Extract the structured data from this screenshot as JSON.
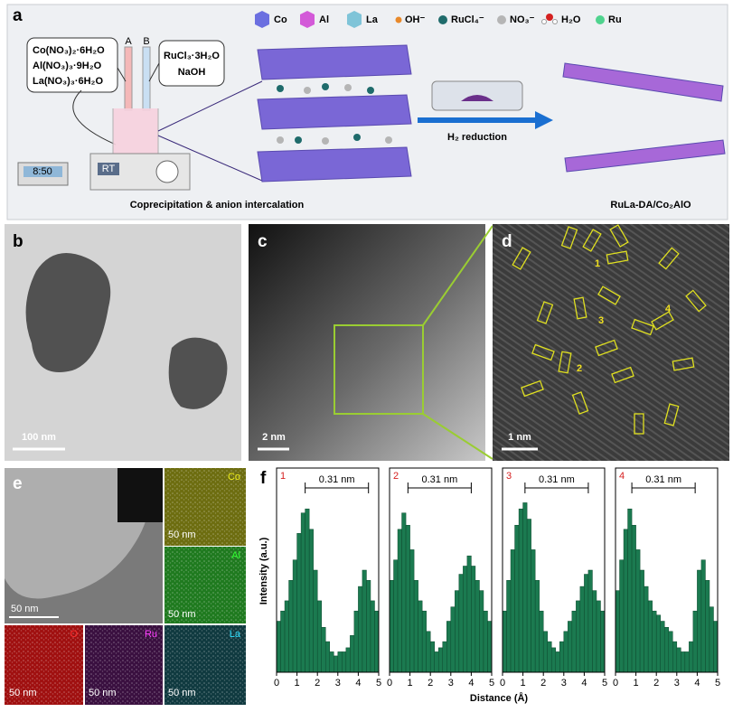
{
  "panel_a": {
    "label": "a",
    "legend": [
      "Co",
      "Al",
      "La",
      "OH⁻",
      "RuCl₄⁻",
      "NO₃⁻",
      "H₂O",
      "Ru"
    ],
    "precursors_left": [
      "Co(NO₃)₂·6H₂O",
      "Al(NO₃)₃·9H₂O",
      "La(NO₃)₃·6H₂O"
    ],
    "precursors_right": [
      "RuCl₃·3H₂O",
      "NaOH"
    ],
    "syringes": [
      "A",
      "B"
    ],
    "display": "8:50",
    "stirrer": "RT",
    "reduction": "H₂ reduction",
    "step_left": "Coprecipitation & anion intercalation",
    "step_right": "RuLa-DA/Co₂AlO"
  },
  "panel_b": {
    "label": "b",
    "scale": "100 nm"
  },
  "panel_c": {
    "label": "c",
    "scale": "2 nm"
  },
  "panel_d": {
    "label": "d",
    "scale": "1 nm",
    "markers": [
      "1",
      "2",
      "3",
      "4"
    ]
  },
  "panel_e": {
    "label": "e",
    "scale": "50 nm",
    "maps": [
      {
        "element": "Co",
        "scale": "50 nm"
      },
      {
        "element": "Al",
        "scale": "50 nm"
      },
      {
        "element": "O",
        "scale": "50 nm"
      },
      {
        "element": "Ru",
        "scale": "50 nm"
      },
      {
        "element": "La",
        "scale": "50 nm"
      }
    ]
  },
  "panel_f": {
    "label": "f",
    "ylabel": "Intensity (a.u.)",
    "xlabel": "Distance (Å)"
  },
  "chart_data": [
    {
      "type": "histogram",
      "title": "1",
      "color": "#1b7a50",
      "bins": [
        0,
        0.2,
        0.4,
        0.6,
        0.8,
        1,
        1.2,
        1.4,
        1.6,
        1.8,
        2,
        2.2,
        2.4,
        2.6,
        2.8,
        3,
        3.2,
        3.4,
        3.6,
        3.8,
        4,
        4.2,
        4.4,
        4.6,
        4.8,
        5
      ],
      "values": [
        0.25,
        0.3,
        0.35,
        0.45,
        0.55,
        0.68,
        0.78,
        0.8,
        0.7,
        0.5,
        0.35,
        0.22,
        0.15,
        0.1,
        0.08,
        0.1,
        0.1,
        0.12,
        0.18,
        0.3,
        0.42,
        0.5,
        0.45,
        0.35,
        0.3
      ],
      "xlim": [
        0,
        5
      ],
      "xticks": [
        0,
        1,
        2,
        3,
        4,
        5
      ],
      "ylim": [
        0,
        1
      ],
      "annotation": {
        "text": "0.31 nm",
        "x": [
          1.4,
          4.5
        ]
      }
    },
    {
      "type": "histogram",
      "title": "2",
      "color": "#1b7a50",
      "bins": [
        0,
        0.2,
        0.4,
        0.6,
        0.8,
        1,
        1.2,
        1.4,
        1.6,
        1.8,
        2,
        2.2,
        2.4,
        2.6,
        2.8,
        3,
        3.2,
        3.4,
        3.6,
        3.8,
        4,
        4.2,
        4.4,
        4.6,
        4.8,
        5
      ],
      "values": [
        0.45,
        0.55,
        0.7,
        0.78,
        0.72,
        0.6,
        0.45,
        0.35,
        0.3,
        0.2,
        0.15,
        0.1,
        0.12,
        0.15,
        0.25,
        0.32,
        0.4,
        0.48,
        0.52,
        0.57,
        0.52,
        0.45,
        0.4,
        0.3,
        0.25
      ],
      "xlim": [
        0,
        5
      ],
      "xticks": [
        0,
        1,
        2,
        3,
        4,
        5
      ],
      "ylim": [
        0,
        1
      ],
      "annotation": {
        "text": "0.31 nm",
        "x": [
          0.9,
          4.0
        ]
      }
    },
    {
      "type": "histogram",
      "title": "3",
      "color": "#1b7a50",
      "bins": [
        0,
        0.2,
        0.4,
        0.6,
        0.8,
        1,
        1.2,
        1.4,
        1.6,
        1.8,
        2,
        2.2,
        2.4,
        2.6,
        2.8,
        3,
        3.2,
        3.4,
        3.6,
        3.8,
        4,
        4.2,
        4.4,
        4.6,
        4.8,
        5
      ],
      "values": [
        0.3,
        0.45,
        0.6,
        0.72,
        0.8,
        0.83,
        0.75,
        0.6,
        0.45,
        0.3,
        0.2,
        0.15,
        0.12,
        0.1,
        0.15,
        0.2,
        0.25,
        0.3,
        0.35,
        0.42,
        0.48,
        0.5,
        0.4,
        0.35,
        0.3
      ],
      "xlim": [
        0,
        5
      ],
      "xticks": [
        0,
        1,
        2,
        3,
        4,
        5
      ],
      "ylim": [
        0,
        1
      ],
      "annotation": {
        "text": "0.31 nm",
        "x": [
          1.1,
          4.2
        ]
      }
    },
    {
      "type": "histogram",
      "title": "4",
      "color": "#1b7a50",
      "bins": [
        0,
        0.2,
        0.4,
        0.6,
        0.8,
        1,
        1.2,
        1.4,
        1.6,
        1.8,
        2,
        2.2,
        2.4,
        2.6,
        2.8,
        3,
        3.2,
        3.4,
        3.6,
        3.8,
        4,
        4.2,
        4.4,
        4.6,
        4.8,
        5
      ],
      "values": [
        0.4,
        0.55,
        0.7,
        0.8,
        0.72,
        0.6,
        0.5,
        0.42,
        0.35,
        0.3,
        0.28,
        0.25,
        0.22,
        0.2,
        0.15,
        0.12,
        0.1,
        0.1,
        0.15,
        0.3,
        0.5,
        0.55,
        0.45,
        0.32,
        0.25
      ],
      "xlim": [
        0,
        5
      ],
      "xticks": [
        0,
        1,
        2,
        3,
        4,
        5
      ],
      "ylim": [
        0,
        1
      ],
      "annotation": {
        "text": "0.31 nm",
        "x": [
          0.8,
          3.9
        ]
      }
    }
  ]
}
